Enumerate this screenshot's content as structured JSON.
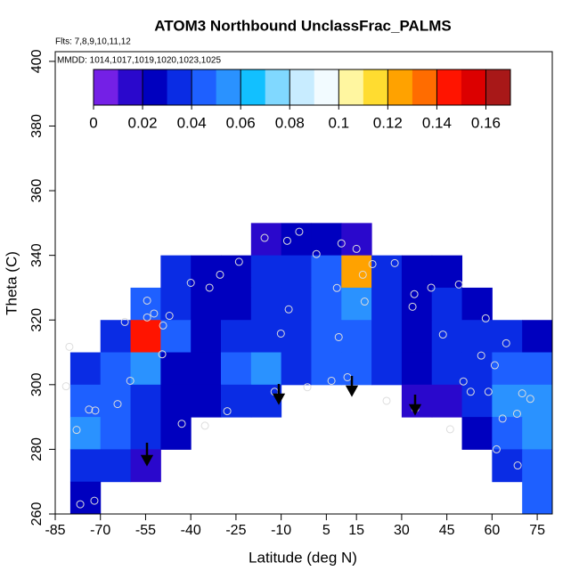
{
  "chart_data": {
    "type": "heatmap",
    "title": "ATOM3 Northbound UnclassFrac_PALMS",
    "subtitle": "Flts: 7,8,9,10,11,12",
    "annotation": "MMDD: 1014,1017,1019,1020,1023,1025",
    "x_label": "Latitude (deg N)",
    "y_label": "Theta (C)",
    "xlim": [
      -85,
      80
    ],
    "ylim": [
      260,
      403
    ],
    "xticks": [
      -85,
      -70,
      -55,
      -40,
      -25,
      -10,
      5,
      15,
      30,
      45,
      60,
      75
    ],
    "yticks": [
      260,
      280,
      300,
      320,
      340,
      360,
      380,
      400
    ],
    "field": {
      "lat": [
        -75,
        -65,
        -55,
        -45,
        -35,
        -25,
        -15,
        -5,
        5,
        15,
        25,
        35,
        45,
        55,
        65,
        75
      ],
      "theta": [
        345,
        335,
        325,
        315,
        305,
        295,
        285,
        275,
        265
      ],
      "values": [
        [
          null,
          null,
          null,
          null,
          null,
          null,
          0.01,
          0.02,
          0.02,
          0.01,
          null,
          null,
          null,
          null,
          null,
          null
        ],
        [
          null,
          null,
          null,
          0.03,
          0.02,
          0.02,
          0.03,
          0.03,
          0.04,
          0.12,
          0.03,
          0.02,
          0.02,
          null,
          null,
          null
        ],
        [
          null,
          null,
          0.04,
          0.03,
          0.02,
          0.02,
          0.03,
          0.03,
          0.04,
          0.05,
          0.03,
          0.02,
          0.03,
          0.02,
          null,
          null
        ],
        [
          null,
          0.03,
          0.14,
          0.04,
          0.02,
          0.03,
          0.03,
          0.03,
          0.04,
          0.04,
          0.03,
          0.02,
          0.03,
          0.03,
          0.03,
          0.02
        ],
        [
          0.03,
          0.04,
          0.05,
          0.02,
          0.02,
          0.04,
          0.05,
          0.03,
          0.04,
          0.04,
          0.03,
          0.02,
          0.03,
          0.03,
          0.04,
          0.04
        ],
        [
          0.04,
          0.04,
          0.03,
          0.02,
          0.02,
          0.03,
          0.03,
          null,
          null,
          null,
          null,
          0.01,
          0.01,
          0.03,
          0.05,
          0.05
        ],
        [
          0.05,
          0.04,
          0.03,
          0.02,
          null,
          null,
          null,
          null,
          null,
          null,
          null,
          null,
          null,
          0.02,
          0.04,
          0.05
        ],
        [
          0.03,
          0.03,
          0.01,
          null,
          null,
          null,
          null,
          null,
          null,
          null,
          null,
          null,
          null,
          null,
          0.03,
          0.04
        ],
        [
          0.02,
          null,
          null,
          null,
          null,
          null,
          null,
          null,
          null,
          null,
          null,
          null,
          null,
          null,
          null,
          0.04
        ]
      ]
    },
    "points": {
      "x": [
        -80.3,
        -47.1,
        -52.2,
        -40,
        -33.8,
        -30.3,
        -24,
        -15.5,
        -8,
        -4,
        1.7,
        10,
        15,
        20.3,
        27.7,
        34.2,
        39.8,
        49,
        57.9,
        64.7,
        56.4,
        60.9,
        50.5,
        52.9,
        58.8,
        63.5,
        68.3,
        70,
        72.7,
        68.5,
        61.5,
        46.1,
        34.5,
        25,
        12,
        6.7,
        -1.3,
        -12.2,
        -27.9,
        -35.3,
        -43,
        -54.5,
        -49.2,
        -49.5,
        -71.7,
        -73.8,
        -77.9,
        -76.7,
        -72,
        -81.4,
        -54.5,
        -61.9,
        -64.3,
        -60.1,
        9.1,
        -10.1,
        -7.5,
        8.5,
        17.1,
        17.7,
        33.6,
        43.7
      ],
      "y": [
        311.7,
        321.3,
        322,
        331.5,
        330,
        334,
        338,
        345.4,
        344.5,
        347.3,
        340.4,
        343.7,
        342,
        337.3,
        337.6,
        328,
        330,
        331,
        320.5,
        312.8,
        309,
        306,
        301,
        297.8,
        297.8,
        289.5,
        291,
        297.3,
        295.6,
        275,
        280,
        286.2,
        292.6,
        295,
        302.3,
        301.2,
        299.2,
        297.8,
        291.8,
        287.3,
        287.9,
        320.8,
        318.3,
        309.4,
        292,
        292.3,
        286,
        263,
        264.1,
        299.5,
        326,
        319.4,
        294,
        301.2,
        314.7,
        315.8,
        323.3,
        329.9,
        334,
        325.7,
        324.1,
        315.5
      ]
    },
    "colorbar": {
      "lim": [
        0,
        0.17
      ],
      "ticks": [
        0,
        0.02,
        0.04,
        0.06,
        0.08,
        0.1,
        0.12,
        0.14,
        0.16
      ],
      "colors": [
        "#7420e6",
        "#2a08cc",
        "#0000bf",
        "#0a2ce4",
        "#1e60ff",
        "#2a92ff",
        "#12c0ff",
        "#80d8ff",
        "#c8ecff",
        "#f2fbff",
        "#fff6a0",
        "#ffdc30",
        "#ffa200",
        "#ff6c00",
        "#ff1400",
        "#dc0000",
        "#a81818"
      ]
    }
  }
}
